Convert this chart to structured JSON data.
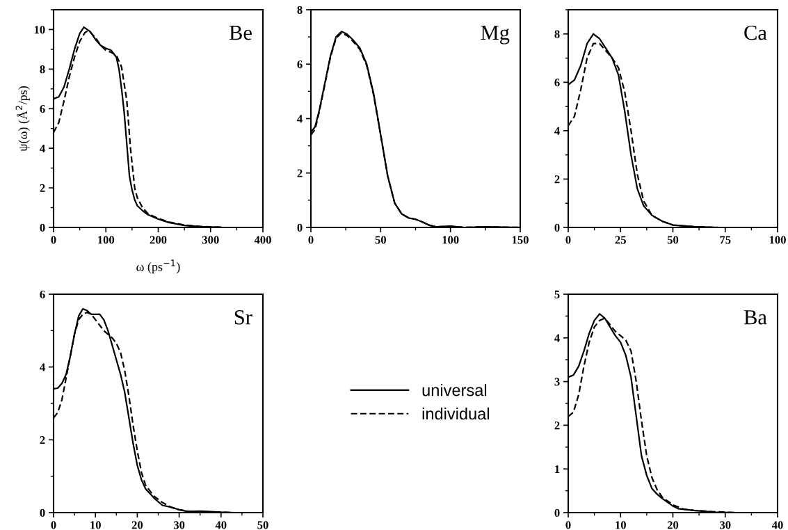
{
  "chart_data": [
    {
      "type": "line",
      "title": "Be",
      "xlabel": "ω (ps$^{−1}$)",
      "ylabel": "ψ(ω) (Å$^{2}$/ps)",
      "xlim": [
        0,
        400
      ],
      "ylim": [
        0,
        11
      ],
      "xticks": [
        0,
        100,
        200,
        300,
        400
      ],
      "yticks": [
        0,
        2,
        4,
        6,
        8,
        10
      ],
      "series": [
        {
          "color": "#000000",
          "line_style": "solid",
          "x": [
            0,
            10,
            20,
            30,
            40,
            50,
            58,
            70,
            80,
            90,
            100,
            110,
            120,
            125,
            130,
            135,
            140,
            145,
            150,
            155,
            160,
            170,
            180,
            200,
            220,
            250,
            280,
            320
          ],
          "values": [
            6.5,
            6.6,
            7.1,
            8.0,
            9.0,
            9.8,
            10.12,
            9.9,
            9.5,
            9.2,
            9.05,
            8.95,
            8.6,
            8.0,
            7.0,
            5.8,
            4.2,
            2.6,
            1.9,
            1.4,
            1.1,
            0.85,
            0.65,
            0.42,
            0.25,
            0.1,
            0.04,
            0.01
          ]
        },
        {
          "color": "#000000",
          "line_style": "dashed",
          "x": [
            0,
            10,
            20,
            30,
            40,
            50,
            60,
            67,
            80,
            90,
            100,
            110,
            120,
            130,
            140,
            147,
            155,
            160,
            170,
            180,
            200,
            220,
            250,
            280,
            320
          ],
          "values": [
            4.8,
            5.3,
            6.4,
            7.6,
            8.6,
            9.4,
            9.85,
            9.95,
            9.6,
            9.2,
            8.95,
            8.85,
            8.7,
            8.1,
            6.4,
            4.0,
            2.0,
            1.5,
            1.0,
            0.7,
            0.45,
            0.28,
            0.12,
            0.05,
            0.01
          ]
        }
      ]
    },
    {
      "type": "line",
      "title": "Mg",
      "xlim": [
        0,
        150
      ],
      "ylim": [
        0,
        8
      ],
      "xticks": [
        0,
        50,
        100,
        150
      ],
      "yticks": [
        0,
        2,
        4,
        6,
        8
      ],
      "series": [
        {
          "color": "#000000",
          "line_style": "solid",
          "x": [
            0,
            3,
            6,
            10,
            14,
            18,
            22,
            26,
            30,
            35,
            40,
            45,
            50,
            55,
            60,
            65,
            70,
            75,
            80,
            85,
            90,
            100,
            105,
            110,
            125,
            150
          ],
          "values": [
            3.5,
            3.7,
            4.3,
            5.3,
            6.3,
            7.0,
            7.2,
            7.1,
            6.9,
            6.6,
            6.0,
            4.9,
            3.4,
            1.9,
            0.9,
            0.5,
            0.35,
            0.3,
            0.2,
            0.08,
            0.02,
            0.05,
            0.02,
            0.0,
            0.02,
            0.0
          ]
        },
        {
          "color": "#000000",
          "line_style": "dashed",
          "x": [
            0,
            3,
            6,
            10,
            14,
            18,
            22,
            26,
            30,
            35,
            40,
            45,
            50,
            55,
            60,
            65,
            70,
            75,
            80,
            85,
            90,
            100,
            105,
            110,
            125,
            150
          ],
          "values": [
            3.4,
            3.6,
            4.25,
            5.25,
            6.25,
            6.95,
            7.15,
            7.05,
            6.85,
            6.55,
            5.95,
            4.85,
            3.4,
            1.9,
            0.9,
            0.5,
            0.35,
            0.3,
            0.2,
            0.08,
            0.02,
            0.05,
            0.02,
            0.0,
            0.02,
            0.0
          ]
        }
      ]
    },
    {
      "type": "line",
      "title": "Ca",
      "xlim": [
        0,
        100
      ],
      "ylim": [
        0,
        9
      ],
      "xticks": [
        0,
        25,
        50,
        75,
        100
      ],
      "yticks": [
        0,
        2,
        4,
        6,
        8
      ],
      "series": [
        {
          "color": "#000000",
          "line_style": "solid",
          "x": [
            0,
            3,
            6,
            9,
            12,
            15,
            18,
            21,
            24,
            27,
            30,
            33,
            36,
            40,
            45,
            50,
            60,
            72
          ],
          "values": [
            5.9,
            6.1,
            6.7,
            7.6,
            8.0,
            7.8,
            7.4,
            7.0,
            6.3,
            4.8,
            3.0,
            1.6,
            0.9,
            0.5,
            0.25,
            0.1,
            0.03,
            0.0
          ]
        },
        {
          "color": "#000000",
          "line_style": "dashed",
          "x": [
            0,
            3,
            6,
            9,
            12,
            15,
            18,
            21,
            24,
            27,
            30,
            33,
            36,
            40,
            45,
            50,
            60,
            72
          ],
          "values": [
            4.2,
            4.6,
            5.7,
            7.0,
            7.6,
            7.6,
            7.3,
            7.0,
            6.6,
            5.6,
            4.0,
            2.2,
            1.1,
            0.5,
            0.25,
            0.1,
            0.03,
            0.0
          ]
        }
      ]
    },
    {
      "type": "line",
      "title": "Sr",
      "xlim": [
        0,
        50
      ],
      "ylim": [
        0,
        6
      ],
      "xticks": [
        0,
        10,
        20,
        30,
        40,
        50
      ],
      "yticks": [
        0,
        2,
        4,
        6
      ],
      "legend": "right",
      "series": [
        {
          "name": "universal",
          "color": "#000000",
          "line_style": "solid",
          "x": [
            0,
            1,
            2,
            3,
            4,
            5,
            6,
            7,
            8,
            9,
            10,
            11,
            12,
            13,
            14,
            15,
            16,
            17,
            18,
            19,
            20,
            21,
            22,
            24,
            26,
            28,
            30,
            32,
            35,
            40,
            43
          ],
          "values": [
            3.4,
            3.42,
            3.55,
            3.8,
            4.3,
            4.9,
            5.4,
            5.6,
            5.55,
            5.45,
            5.45,
            5.45,
            5.3,
            5.0,
            4.6,
            4.2,
            3.8,
            3.3,
            2.6,
            1.9,
            1.3,
            0.9,
            0.65,
            0.4,
            0.2,
            0.15,
            0.08,
            0.03,
            0.04,
            0.01,
            0.0
          ]
        },
        {
          "name": "individual",
          "color": "#000000",
          "line_style": "dashed",
          "x": [
            0,
            1,
            2,
            3,
            4,
            5,
            6,
            7,
            8,
            9,
            10,
            11,
            12,
            13,
            14,
            15,
            16,
            17,
            18,
            19,
            20,
            21,
            22,
            24,
            26,
            28,
            30,
            32,
            35,
            40,
            43
          ],
          "values": [
            2.6,
            2.75,
            3.1,
            3.7,
            4.3,
            4.9,
            5.3,
            5.45,
            5.5,
            5.45,
            5.3,
            5.15,
            5.0,
            4.9,
            4.8,
            4.65,
            4.4,
            3.9,
            3.2,
            2.4,
            1.7,
            1.1,
            0.75,
            0.45,
            0.28,
            0.15,
            0.08,
            0.04,
            0.03,
            0.01,
            0.0
          ]
        }
      ]
    },
    {
      "type": "line",
      "title": "Ba",
      "xlim": [
        0,
        40
      ],
      "ylim": [
        0,
        5
      ],
      "xticks": [
        0,
        10,
        20,
        30,
        40
      ],
      "yticks": [
        0,
        1,
        2,
        3,
        4,
        5
      ],
      "series": [
        {
          "color": "#000000",
          "line_style": "solid",
          "x": [
            0,
            1,
            2,
            3,
            4,
            5,
            6,
            7,
            8,
            9,
            10,
            11,
            12,
            13,
            14,
            15,
            16,
            17,
            18,
            20,
            21,
            24,
            28,
            32
          ],
          "values": [
            3.1,
            3.15,
            3.35,
            3.7,
            4.1,
            4.4,
            4.55,
            4.45,
            4.25,
            4.05,
            3.9,
            3.6,
            3.1,
            2.2,
            1.3,
            0.85,
            0.55,
            0.42,
            0.32,
            0.15,
            0.09,
            0.05,
            0.01,
            0.0
          ]
        },
        {
          "color": "#000000",
          "line_style": "dashed",
          "x": [
            0,
            1,
            2,
            3,
            4,
            5,
            6,
            7,
            8,
            9,
            10,
            11,
            12,
            13,
            14,
            15,
            16,
            17,
            18,
            20,
            22,
            24,
            28,
            32
          ],
          "values": [
            2.2,
            2.3,
            2.7,
            3.35,
            3.9,
            4.25,
            4.4,
            4.45,
            4.3,
            4.15,
            4.05,
            3.95,
            3.7,
            3.0,
            2.1,
            1.3,
            0.8,
            0.52,
            0.35,
            0.18,
            0.08,
            0.05,
            0.02,
            0.0
          ]
        }
      ]
    }
  ]
}
